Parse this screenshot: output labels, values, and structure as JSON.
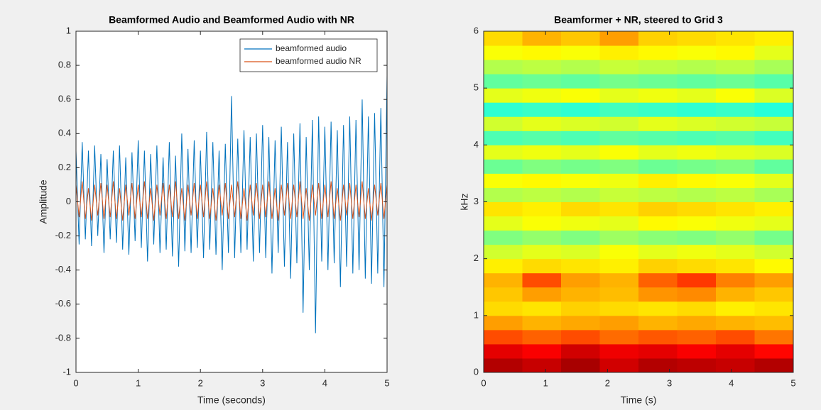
{
  "chart_data": [
    {
      "type": "line",
      "title": "Beamformed Audio and Beamformed Audio with NR",
      "xlabel": "Time (seconds)",
      "ylabel": "Amplitude",
      "x": [
        0,
        0.05,
        0.1,
        0.15,
        0.2,
        0.25,
        0.3,
        0.35,
        0.4,
        0.45,
        0.5,
        0.55,
        0.6,
        0.65,
        0.7,
        0.75,
        0.8,
        0.85,
        0.9,
        0.95,
        1,
        1.05,
        1.1,
        1.15,
        1.2,
        1.25,
        1.3,
        1.35,
        1.4,
        1.45,
        1.5,
        1.55,
        1.6,
        1.65,
        1.7,
        1.75,
        1.8,
        1.85,
        1.9,
        1.95,
        2,
        2.05,
        2.1,
        2.15,
        2.2,
        2.25,
        2.3,
        2.35,
        2.4,
        2.45,
        2.5,
        2.55,
        2.6,
        2.65,
        2.7,
        2.75,
        2.8,
        2.85,
        2.9,
        2.95,
        3,
        3.05,
        3.1,
        3.15,
        3.2,
        3.25,
        3.3,
        3.35,
        3.4,
        3.45,
        3.5,
        3.55,
        3.6,
        3.65,
        3.7,
        3.75,
        3.8,
        3.85,
        3.9,
        3.95,
        4,
        4.05,
        4.1,
        4.15,
        4.2,
        4.25,
        4.3,
        4.35,
        4.4,
        4.45,
        4.5,
        4.55,
        4.6,
        4.65,
        4.7,
        4.75,
        4.8,
        4.85,
        4.9,
        4.95,
        5
      ],
      "series": [
        {
          "name": "beamformed audio",
          "color": "#0072bd",
          "values": [
            0.3,
            -0.25,
            0.35,
            -0.22,
            0.3,
            -0.26,
            0.33,
            -0.2,
            0.28,
            -0.3,
            0.25,
            -0.22,
            0.3,
            -0.24,
            0.33,
            -0.28,
            0.26,
            -0.31,
            0.29,
            -0.23,
            0.36,
            -0.27,
            0.3,
            -0.35,
            0.28,
            -0.25,
            0.33,
            -0.3,
            0.26,
            -0.28,
            0.35,
            -0.32,
            0.27,
            -0.38,
            0.4,
            -0.29,
            0.31,
            -0.3,
            0.36,
            -0.27,
            0.3,
            -0.33,
            0.41,
            -0.28,
            0.35,
            -0.31,
            0.3,
            -0.4,
            0.34,
            -0.3,
            0.62,
            -0.33,
            0.37,
            -0.3,
            0.42,
            -0.28,
            0.38,
            -0.35,
            0.4,
            -0.3,
            0.45,
            -0.33,
            0.38,
            -0.42,
            0.36,
            -0.3,
            0.44,
            -0.38,
            0.35,
            -0.45,
            0.4,
            -0.36,
            0.46,
            -0.65,
            0.38,
            -0.4,
            0.48,
            -0.77,
            0.5,
            -0.35,
            0.44,
            -0.4,
            0.47,
            -0.36,
            0.42,
            -0.5,
            0.45,
            -0.38,
            0.5,
            -0.42,
            0.48,
            -0.4,
            0.6,
            -0.45,
            0.5,
            -0.48,
            0.52,
            -0.42,
            0.55,
            -0.5,
            0.74
          ]
        },
        {
          "name": "beamformed audio NR",
          "color": "#d95319",
          "values": [
            0.1,
            -0.09,
            0.12,
            -0.1,
            0.08,
            -0.11,
            0.1,
            -0.08,
            0.11,
            -0.1,
            0.1,
            -0.09,
            0.12,
            -0.1,
            0.08,
            -0.11,
            0.1,
            -0.08,
            0.11,
            -0.1,
            0.1,
            -0.09,
            0.12,
            -0.1,
            0.08,
            -0.11,
            0.1,
            -0.08,
            0.11,
            -0.1,
            0.1,
            -0.09,
            0.12,
            -0.1,
            0.08,
            -0.11,
            0.1,
            -0.08,
            0.11,
            -0.1,
            0.1,
            -0.09,
            0.12,
            -0.1,
            0.08,
            -0.11,
            0.1,
            -0.08,
            0.11,
            -0.1,
            0.1,
            -0.09,
            0.12,
            -0.1,
            0.08,
            -0.11,
            0.1,
            -0.08,
            0.11,
            -0.1,
            0.1,
            -0.09,
            0.12,
            -0.1,
            0.08,
            -0.11,
            0.1,
            -0.08,
            0.11,
            -0.1,
            0.1,
            -0.09,
            0.12,
            -0.1,
            0.08,
            -0.11,
            0.1,
            -0.08,
            0.11,
            -0.1,
            0.1,
            -0.09,
            0.12,
            -0.1,
            0.08,
            -0.11,
            0.1,
            -0.08,
            0.11,
            -0.1,
            0.1,
            -0.09,
            0.12,
            -0.1,
            0.08,
            -0.11,
            0.1,
            -0.08,
            0.11,
            -0.1,
            0.1
          ]
        }
      ],
      "xlim": [
        0,
        5
      ],
      "ylim": [
        -1,
        1
      ],
      "xticks": [
        0,
        1,
        2,
        3,
        4,
        5
      ],
      "yticks": [
        -1,
        -0.8,
        -0.6,
        -0.4,
        -0.2,
        0,
        0.2,
        0.4,
        0.6,
        0.8,
        1
      ],
      "legend": "upper right"
    },
    {
      "type": "heatmap",
      "title": "Beamformer + NR, steered to Grid 3",
      "xlabel": "Time (s)",
      "ylabel": "kHz",
      "xbins": [
        0,
        0.625,
        1.25,
        1.875,
        2.5,
        3.125,
        3.75,
        4.375,
        5
      ],
      "ybins": [
        0,
        0.25,
        0.5,
        0.75,
        1,
        1.25,
        1.5,
        1.75,
        2,
        2.25,
        2.5,
        2.75,
        3,
        3.25,
        3.5,
        3.75,
        4,
        4.25,
        4.5,
        4.75,
        5,
        5.25,
        5.5,
        5.75,
        6
      ],
      "z": [
        [
          0.95,
          0.93,
          0.96,
          0.92,
          0.95,
          0.94,
          0.93,
          0.95
        ],
        [
          0.9,
          0.88,
          0.92,
          0.89,
          0.9,
          0.88,
          0.9,
          0.87
        ],
        [
          0.8,
          0.78,
          0.8,
          0.77,
          0.79,
          0.78,
          0.8,
          0.76
        ],
        [
          0.72,
          0.7,
          0.71,
          0.72,
          0.7,
          0.71,
          0.7,
          0.69
        ],
        [
          0.66,
          0.65,
          0.67,
          0.66,
          0.65,
          0.66,
          0.64,
          0.65
        ],
        [
          0.68,
          0.72,
          0.7,
          0.69,
          0.73,
          0.74,
          0.7,
          0.68
        ],
        [
          0.7,
          0.8,
          0.72,
          0.7,
          0.78,
          0.82,
          0.75,
          0.72
        ],
        [
          0.64,
          0.66,
          0.65,
          0.64,
          0.67,
          0.66,
          0.65,
          0.63
        ],
        [
          0.58,
          0.6,
          0.59,
          0.62,
          0.6,
          0.61,
          0.6,
          0.58
        ],
        [
          0.5,
          0.52,
          0.5,
          0.53,
          0.51,
          0.5,
          0.52,
          0.49
        ],
        [
          0.6,
          0.62,
          0.61,
          0.6,
          0.63,
          0.62,
          0.61,
          0.6
        ],
        [
          0.65,
          0.64,
          0.66,
          0.65,
          0.67,
          0.66,
          0.65,
          0.64
        ],
        [
          0.55,
          0.56,
          0.55,
          0.57,
          0.56,
          0.55,
          0.56,
          0.54
        ],
        [
          0.62,
          0.63,
          0.62,
          0.61,
          0.64,
          0.63,
          0.62,
          0.6
        ],
        [
          0.48,
          0.5,
          0.49,
          0.5,
          0.48,
          0.49,
          0.5,
          0.47
        ],
        [
          0.6,
          0.61,
          0.6,
          0.62,
          0.6,
          0.61,
          0.6,
          0.59
        ],
        [
          0.45,
          0.46,
          0.45,
          0.47,
          0.46,
          0.45,
          0.46,
          0.44
        ],
        [
          0.58,
          0.6,
          0.59,
          0.58,
          0.6,
          0.59,
          0.58,
          0.57
        ],
        [
          0.42,
          0.43,
          0.42,
          0.44,
          0.43,
          0.42,
          0.43,
          0.41
        ],
        [
          0.6,
          0.61,
          0.62,
          0.6,
          0.61,
          0.6,
          0.62,
          0.59
        ],
        [
          0.47,
          0.48,
          0.47,
          0.49,
          0.48,
          0.47,
          0.48,
          0.46
        ],
        [
          0.55,
          0.56,
          0.55,
          0.57,
          0.56,
          0.55,
          0.56,
          0.54
        ],
        [
          0.62,
          0.63,
          0.62,
          0.64,
          0.63,
          0.62,
          0.63,
          0.6
        ],
        [
          0.66,
          0.7,
          0.68,
          0.72,
          0.67,
          0.66,
          0.65,
          0.64
        ]
      ],
      "colormap": "jet",
      "clim": [
        0,
        1
      ],
      "xlim": [
        0,
        5
      ],
      "ylim": [
        0,
        6
      ],
      "xticks": [
        0,
        1,
        2,
        3,
        4,
        5
      ],
      "yticks": [
        0,
        1,
        2,
        3,
        4,
        5,
        6
      ]
    }
  ]
}
